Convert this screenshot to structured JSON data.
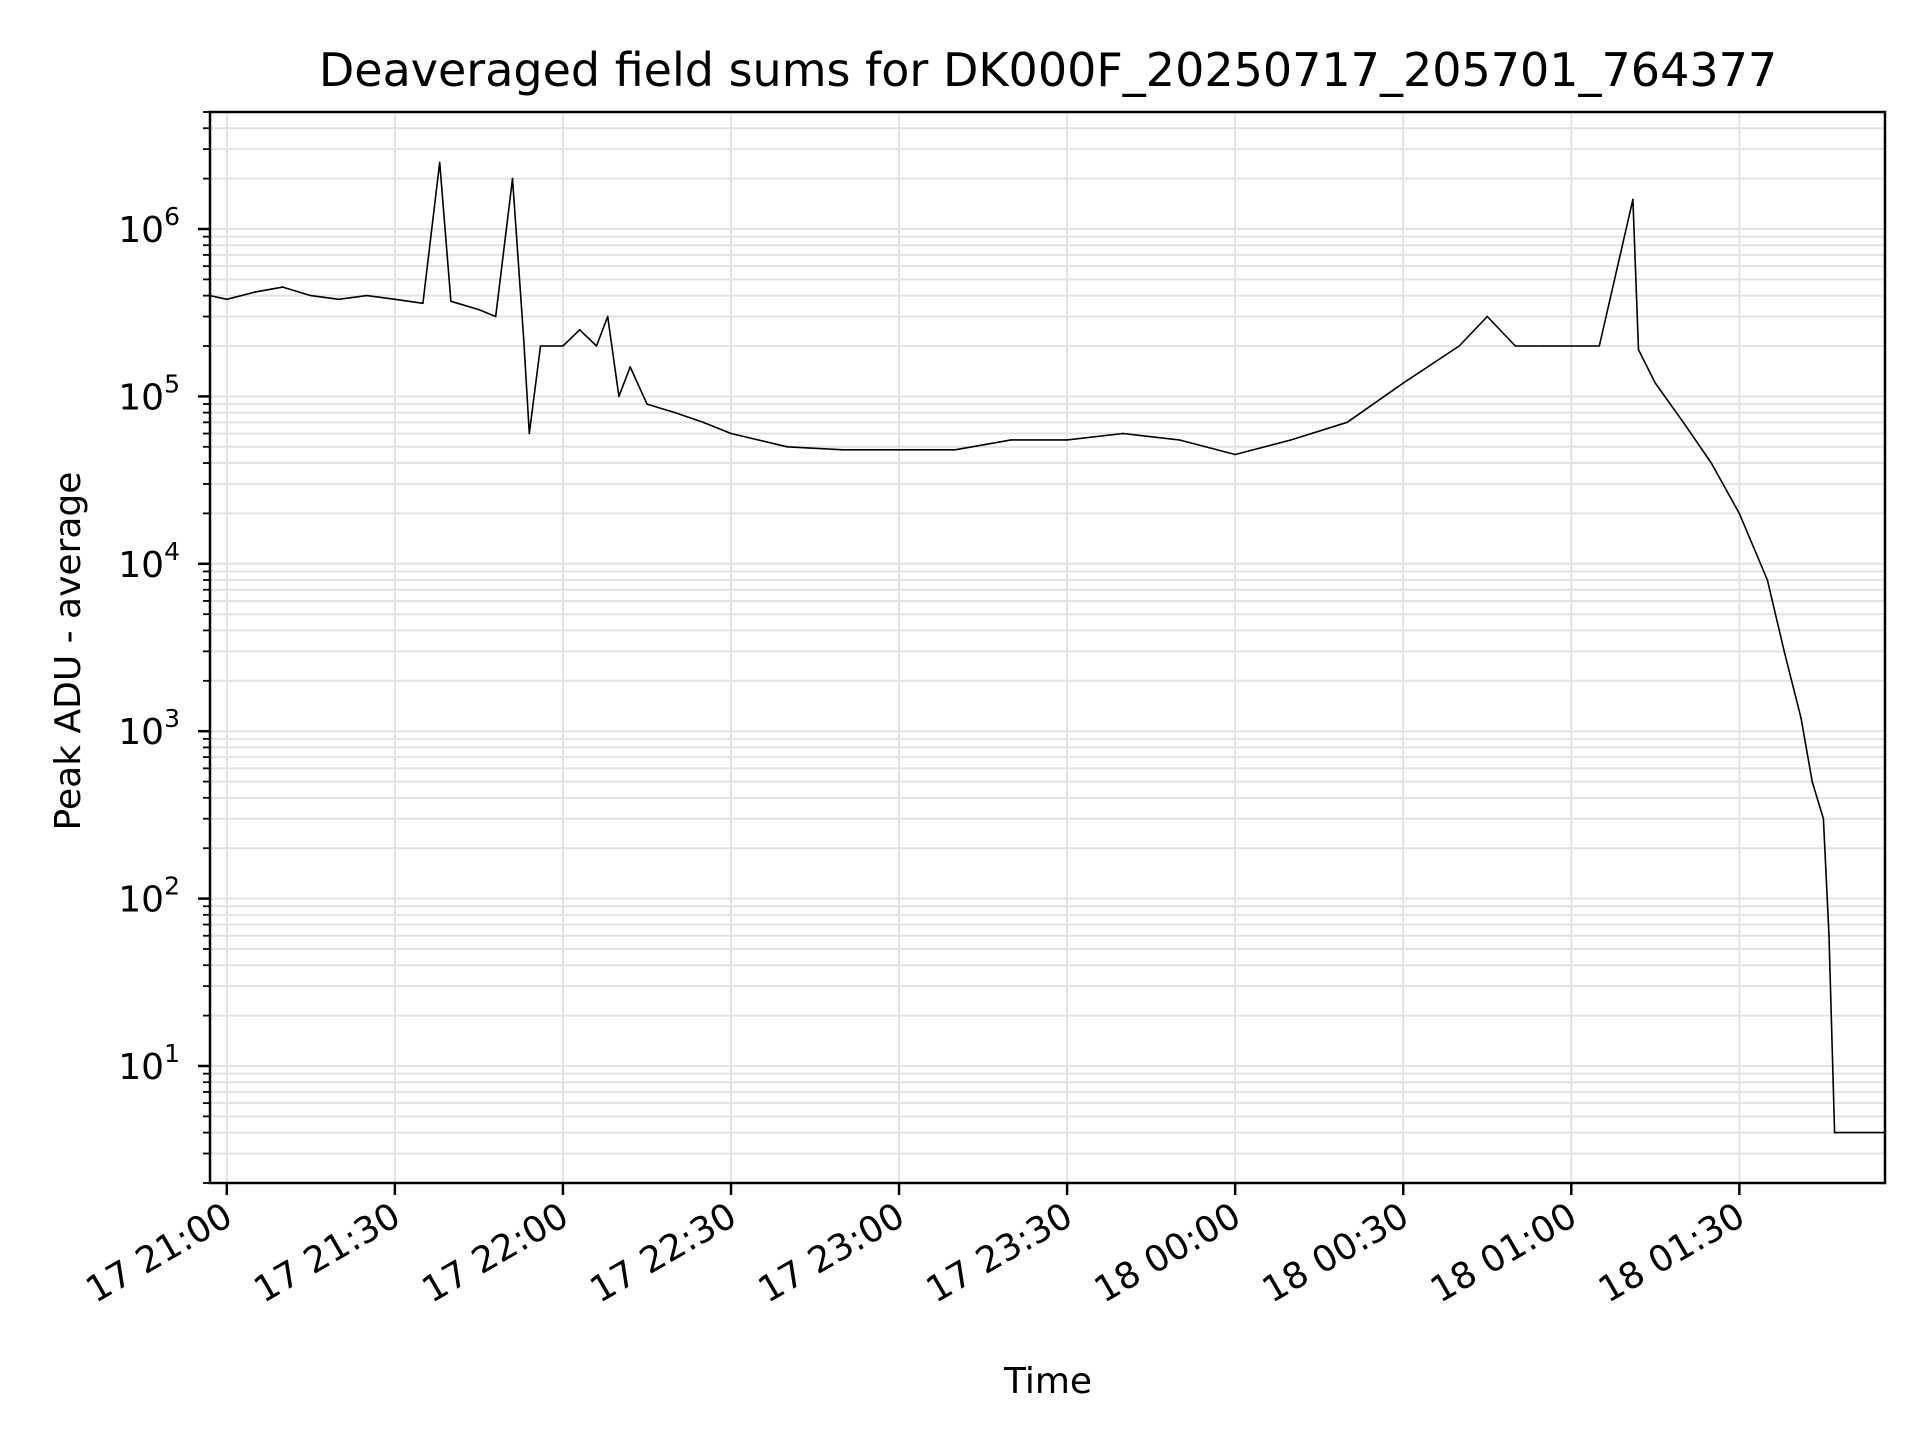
{
  "chart_data": {
    "type": "line",
    "title": "Deaveraged field sums for DK000F_20250717_205701_764377",
    "xlabel": "Time",
    "ylabel": "Peak ADU - average",
    "yscale": "log",
    "ylim": [
      2,
      5000000
    ],
    "xlim": [
      "2025-07-17 20:57:00",
      "2025-07-18 01:56:00"
    ],
    "x_ticks": [
      {
        "time": "2025-07-17 21:00",
        "label": "17 21:00"
      },
      {
        "time": "2025-07-17 21:30",
        "label": "17 21:30"
      },
      {
        "time": "2025-07-17 22:00",
        "label": "17 22:00"
      },
      {
        "time": "2025-07-17 22:30",
        "label": "17 22:30"
      },
      {
        "time": "2025-07-17 23:00",
        "label": "17 23:00"
      },
      {
        "time": "2025-07-17 23:30",
        "label": "17 23:30"
      },
      {
        "time": "2025-07-18 00:00",
        "label": "18 00:00"
      },
      {
        "time": "2025-07-18 00:30",
        "label": "18 00:30"
      },
      {
        "time": "2025-07-18 01:00",
        "label": "18 01:00"
      },
      {
        "time": "2025-07-18 01:30",
        "label": "18 01:30"
      }
    ],
    "y_ticks": [
      {
        "value": 10,
        "base": "10",
        "exp": "1"
      },
      {
        "value": 100,
        "base": "10",
        "exp": "2"
      },
      {
        "value": 1000,
        "base": "10",
        "exp": "3"
      },
      {
        "value": 10000,
        "base": "10",
        "exp": "4"
      },
      {
        "value": 100000,
        "base": "10",
        "exp": "5"
      },
      {
        "value": 1000000,
        "base": "10",
        "exp": "6"
      }
    ],
    "grid": true,
    "line_color": "#000000",
    "grid_color": "#e3e3e3",
    "series": [
      {
        "values": [
          [
            "2025-07-17 20:57:00",
            400000
          ],
          [
            "2025-07-17 21:00:00",
            380000
          ],
          [
            "2025-07-17 21:05:00",
            420000
          ],
          [
            "2025-07-17 21:10:00",
            450000
          ],
          [
            "2025-07-17 21:15:00",
            400000
          ],
          [
            "2025-07-17 21:20:00",
            380000
          ],
          [
            "2025-07-17 21:25:00",
            400000
          ],
          [
            "2025-07-17 21:30:00",
            380000
          ],
          [
            "2025-07-17 21:35:00",
            360000
          ],
          [
            "2025-07-17 21:38:00",
            2500000
          ],
          [
            "2025-07-17 21:40:00",
            370000
          ],
          [
            "2025-07-17 21:45:00",
            330000
          ],
          [
            "2025-07-17 21:48:00",
            300000
          ],
          [
            "2025-07-17 21:51:00",
            2000000
          ],
          [
            "2025-07-17 21:53:00",
            220000
          ],
          [
            "2025-07-17 21:54:00",
            60000
          ],
          [
            "2025-07-17 21:56:00",
            200000
          ],
          [
            "2025-07-17 22:00:00",
            200000
          ],
          [
            "2025-07-17 22:03:00",
            250000
          ],
          [
            "2025-07-17 22:06:00",
            200000
          ],
          [
            "2025-07-17 22:08:00",
            300000
          ],
          [
            "2025-07-17 22:10:00",
            100000
          ],
          [
            "2025-07-17 22:12:00",
            150000
          ],
          [
            "2025-07-17 22:15:00",
            90000
          ],
          [
            "2025-07-17 22:20:00",
            80000
          ],
          [
            "2025-07-17 22:25:00",
            70000
          ],
          [
            "2025-07-17 22:30:00",
            60000
          ],
          [
            "2025-07-17 22:40:00",
            50000
          ],
          [
            "2025-07-17 22:50:00",
            48000
          ],
          [
            "2025-07-17 23:00:00",
            48000
          ],
          [
            "2025-07-17 23:10:00",
            48000
          ],
          [
            "2025-07-17 23:20:00",
            55000
          ],
          [
            "2025-07-17 23:30:00",
            55000
          ],
          [
            "2025-07-17 23:40:00",
            60000
          ],
          [
            "2025-07-17 23:50:00",
            55000
          ],
          [
            "2025-07-18 00:00:00",
            45000
          ],
          [
            "2025-07-18 00:10:00",
            55000
          ],
          [
            "2025-07-18 00:20:00",
            70000
          ],
          [
            "2025-07-18 00:30:00",
            120000
          ],
          [
            "2025-07-18 00:40:00",
            200000
          ],
          [
            "2025-07-18 00:45:00",
            300000
          ],
          [
            "2025-07-18 00:50:00",
            200000
          ],
          [
            "2025-07-18 00:55:00",
            200000
          ],
          [
            "2025-07-18 01:00:00",
            200000
          ],
          [
            "2025-07-18 01:05:00",
            200000
          ],
          [
            "2025-07-18 01:11:00",
            1500000
          ],
          [
            "2025-07-18 01:12:00",
            190000
          ],
          [
            "2025-07-18 01:15:00",
            120000
          ],
          [
            "2025-07-18 01:20:00",
            70000
          ],
          [
            "2025-07-18 01:25:00",
            40000
          ],
          [
            "2025-07-18 01:30:00",
            20000
          ],
          [
            "2025-07-18 01:35:00",
            8000
          ],
          [
            "2025-07-18 01:38:00",
            3000
          ],
          [
            "2025-07-18 01:41:00",
            1200
          ],
          [
            "2025-07-18 01:43:00",
            500
          ],
          [
            "2025-07-18 01:45:00",
            300
          ],
          [
            "2025-07-18 01:46:00",
            60
          ],
          [
            "2025-07-18 01:47:00",
            4
          ],
          [
            "2025-07-18 01:56:00",
            4
          ]
        ]
      }
    ]
  }
}
